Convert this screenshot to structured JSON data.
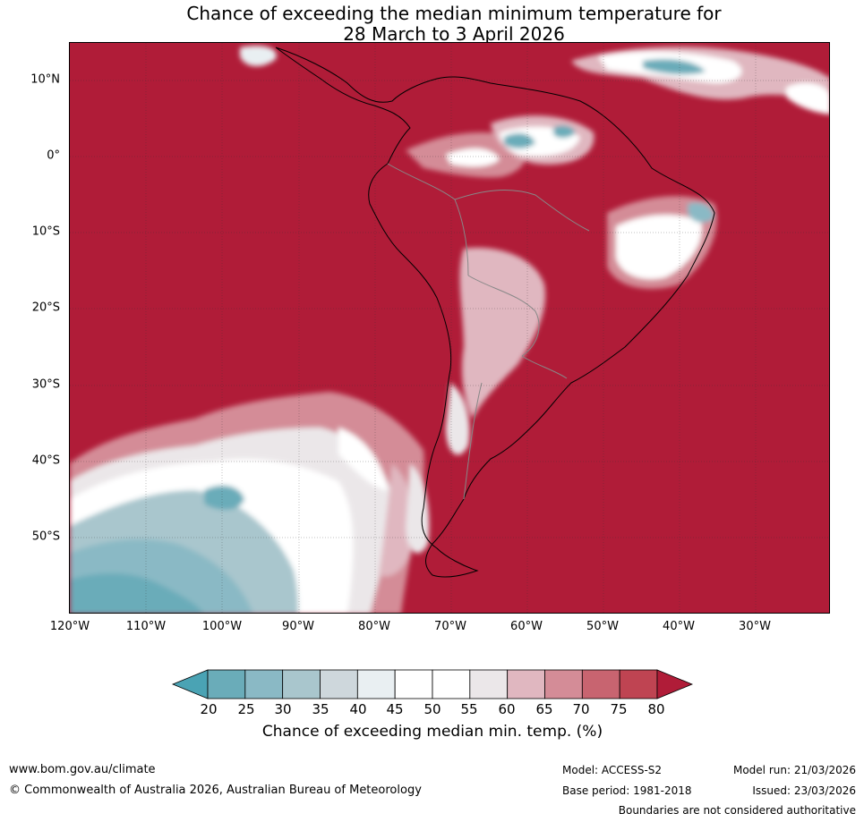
{
  "title_line1": "Chance of exceeding the median minimum temperature for",
  "title_line2": "28 March to 3 April 2026",
  "latitude_labels": [
    "10°N",
    "0°",
    "10°S",
    "20°S",
    "30°S",
    "40°S",
    "50°S"
  ],
  "longitude_labels": [
    "120°W",
    "110°W",
    "100°W",
    "90°W",
    "80°W",
    "70°W",
    "60°W",
    "50°W",
    "40°W",
    "30°W"
  ],
  "colorbar": {
    "title": "Chance of exceeding median min. temp. (%)",
    "ticks": [
      "20",
      "25",
      "30",
      "35",
      "40",
      "45",
      "50",
      "55",
      "60",
      "65",
      "70",
      "75",
      "80"
    ],
    "colors": [
      "#4aa3b4",
      "#6aacb9",
      "#8ab9c5",
      "#a9c6cd",
      "#ced7dc",
      "#e9eff2",
      "#ffffff",
      "#ffffff",
      "#ebe7e9",
      "#e0b7c0",
      "#d48c97",
      "#c86470",
      "#bf4452",
      "#b01c38"
    ]
  },
  "footer": {
    "website": "www.bom.gov.au/climate",
    "copyright": "© Commonwealth of Australia 2026, Australian Bureau of Meteorology",
    "model": "Model: ACCESS-S2",
    "base_period": "Base period: 1981-2018",
    "model_run": "Model run: 21/03/2026",
    "issued": "Issued: 23/03/2026",
    "disclaimer": "Boundaries are not considered authoritative"
  }
}
